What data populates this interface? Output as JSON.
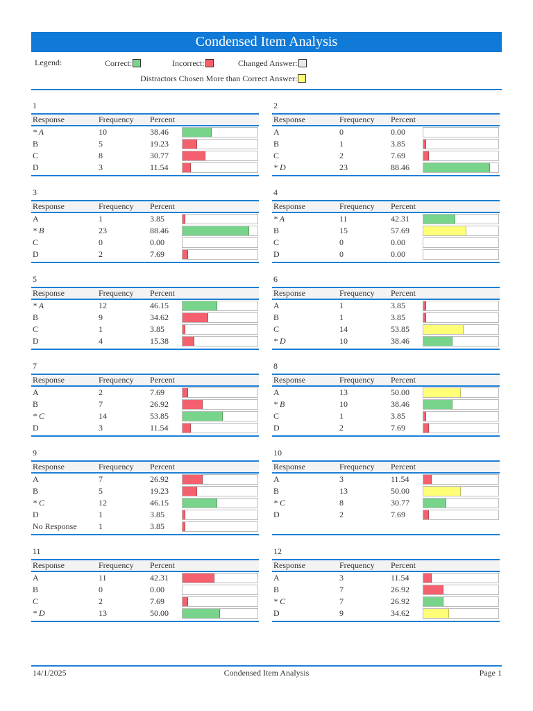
{
  "title": "Condensed Item Analysis",
  "legend": {
    "label": "Legend:",
    "correct": "Correct:",
    "incorrect": "Incorrect:",
    "changed": "Changed Answer:",
    "distractor": "Distractors Chosen More than Correct Answer:"
  },
  "colors": {
    "correct": "#77d48a",
    "incorrect": "#f5606e",
    "changed": "#e8e8e8",
    "distractor": "#ffff77"
  },
  "headers": {
    "response": "Response",
    "frequency": "Frequency",
    "percent": "Percent"
  },
  "items": [
    {
      "number": "1",
      "rows": [
        {
          "r": "* A",
          "f": "10",
          "p": "38.46",
          "t": "correct"
        },
        {
          "r": "B",
          "f": "5",
          "p": "19.23",
          "t": "incorrect"
        },
        {
          "r": "C",
          "f": "8",
          "p": "30.77",
          "t": "incorrect"
        },
        {
          "r": "D",
          "f": "3",
          "p": "11.54",
          "t": "incorrect"
        }
      ]
    },
    {
      "number": "2",
      "rows": [
        {
          "r": "A",
          "f": "0",
          "p": "0.00",
          "t": "incorrect"
        },
        {
          "r": "B",
          "f": "1",
          "p": "3.85",
          "t": "incorrect"
        },
        {
          "r": "C",
          "f": "2",
          "p": "7.69",
          "t": "incorrect"
        },
        {
          "r": "* D",
          "f": "23",
          "p": "88.46",
          "t": "correct"
        }
      ]
    },
    {
      "number": "3",
      "rows": [
        {
          "r": "A",
          "f": "1",
          "p": "3.85",
          "t": "incorrect"
        },
        {
          "r": "* B",
          "f": "23",
          "p": "88.46",
          "t": "correct"
        },
        {
          "r": "C",
          "f": "0",
          "p": "0.00",
          "t": "incorrect"
        },
        {
          "r": "D",
          "f": "2",
          "p": "7.69",
          "t": "incorrect"
        }
      ]
    },
    {
      "number": "4",
      "rows": [
        {
          "r": "* A",
          "f": "11",
          "p": "42.31",
          "t": "correct"
        },
        {
          "r": "B",
          "f": "15",
          "p": "57.69",
          "t": "distractor"
        },
        {
          "r": "C",
          "f": "0",
          "p": "0.00",
          "t": "incorrect"
        },
        {
          "r": "D",
          "f": "0",
          "p": "0.00",
          "t": "incorrect"
        }
      ]
    },
    {
      "number": "5",
      "rows": [
        {
          "r": "* A",
          "f": "12",
          "p": "46.15",
          "t": "correct"
        },
        {
          "r": "B",
          "f": "9",
          "p": "34.62",
          "t": "incorrect"
        },
        {
          "r": "C",
          "f": "1",
          "p": "3.85",
          "t": "incorrect"
        },
        {
          "r": "D",
          "f": "4",
          "p": "15.38",
          "t": "incorrect"
        }
      ]
    },
    {
      "number": "6",
      "rows": [
        {
          "r": "A",
          "f": "1",
          "p": "3.85",
          "t": "incorrect"
        },
        {
          "r": "B",
          "f": "1",
          "p": "3.85",
          "t": "incorrect"
        },
        {
          "r": "C",
          "f": "14",
          "p": "53.85",
          "t": "distractor"
        },
        {
          "r": "* D",
          "f": "10",
          "p": "38.46",
          "t": "correct"
        }
      ]
    },
    {
      "number": "7",
      "rows": [
        {
          "r": "A",
          "f": "2",
          "p": "7.69",
          "t": "incorrect"
        },
        {
          "r": "B",
          "f": "7",
          "p": "26.92",
          "t": "incorrect"
        },
        {
          "r": "* C",
          "f": "14",
          "p": "53.85",
          "t": "correct"
        },
        {
          "r": "D",
          "f": "3",
          "p": "11.54",
          "t": "incorrect"
        }
      ]
    },
    {
      "number": "8",
      "rows": [
        {
          "r": "A",
          "f": "13",
          "p": "50.00",
          "t": "distractor"
        },
        {
          "r": "* B",
          "f": "10",
          "p": "38.46",
          "t": "correct"
        },
        {
          "r": "C",
          "f": "1",
          "p": "3.85",
          "t": "incorrect"
        },
        {
          "r": "D",
          "f": "2",
          "p": "7.69",
          "t": "incorrect"
        }
      ]
    },
    {
      "number": "9",
      "rows": [
        {
          "r": "A",
          "f": "7",
          "p": "26.92",
          "t": "incorrect"
        },
        {
          "r": "B",
          "f": "5",
          "p": "19.23",
          "t": "incorrect"
        },
        {
          "r": "* C",
          "f": "12",
          "p": "46.15",
          "t": "correct"
        },
        {
          "r": "D",
          "f": "1",
          "p": "3.85",
          "t": "incorrect"
        },
        {
          "r": "No Response",
          "f": "1",
          "p": "3.85",
          "t": "incorrect"
        }
      ]
    },
    {
      "number": "10",
      "rows": [
        {
          "r": "A",
          "f": "3",
          "p": "11.54",
          "t": "incorrect"
        },
        {
          "r": "B",
          "f": "13",
          "p": "50.00",
          "t": "distractor"
        },
        {
          "r": "* C",
          "f": "8",
          "p": "30.77",
          "t": "correct"
        },
        {
          "r": "D",
          "f": "2",
          "p": "7.69",
          "t": "incorrect"
        }
      ]
    },
    {
      "number": "11",
      "rows": [
        {
          "r": "A",
          "f": "11",
          "p": "42.31",
          "t": "incorrect"
        },
        {
          "r": "B",
          "f": "0",
          "p": "0.00",
          "t": "incorrect"
        },
        {
          "r": "C",
          "f": "2",
          "p": "7.69",
          "t": "incorrect"
        },
        {
          "r": "* D",
          "f": "13",
          "p": "50.00",
          "t": "correct"
        }
      ]
    },
    {
      "number": "12",
      "rows": [
        {
          "r": "A",
          "f": "3",
          "p": "11.54",
          "t": "incorrect"
        },
        {
          "r": "B",
          "f": "7",
          "p": "26.92",
          "t": "incorrect"
        },
        {
          "r": "* C",
          "f": "7",
          "p": "26.92",
          "t": "correct"
        },
        {
          "r": "D",
          "f": "9",
          "p": "34.62",
          "t": "distractor"
        }
      ]
    }
  ],
  "footer": {
    "date": "14/1/2025",
    "title": "Condensed Item Analysis",
    "page": "Page 1"
  }
}
